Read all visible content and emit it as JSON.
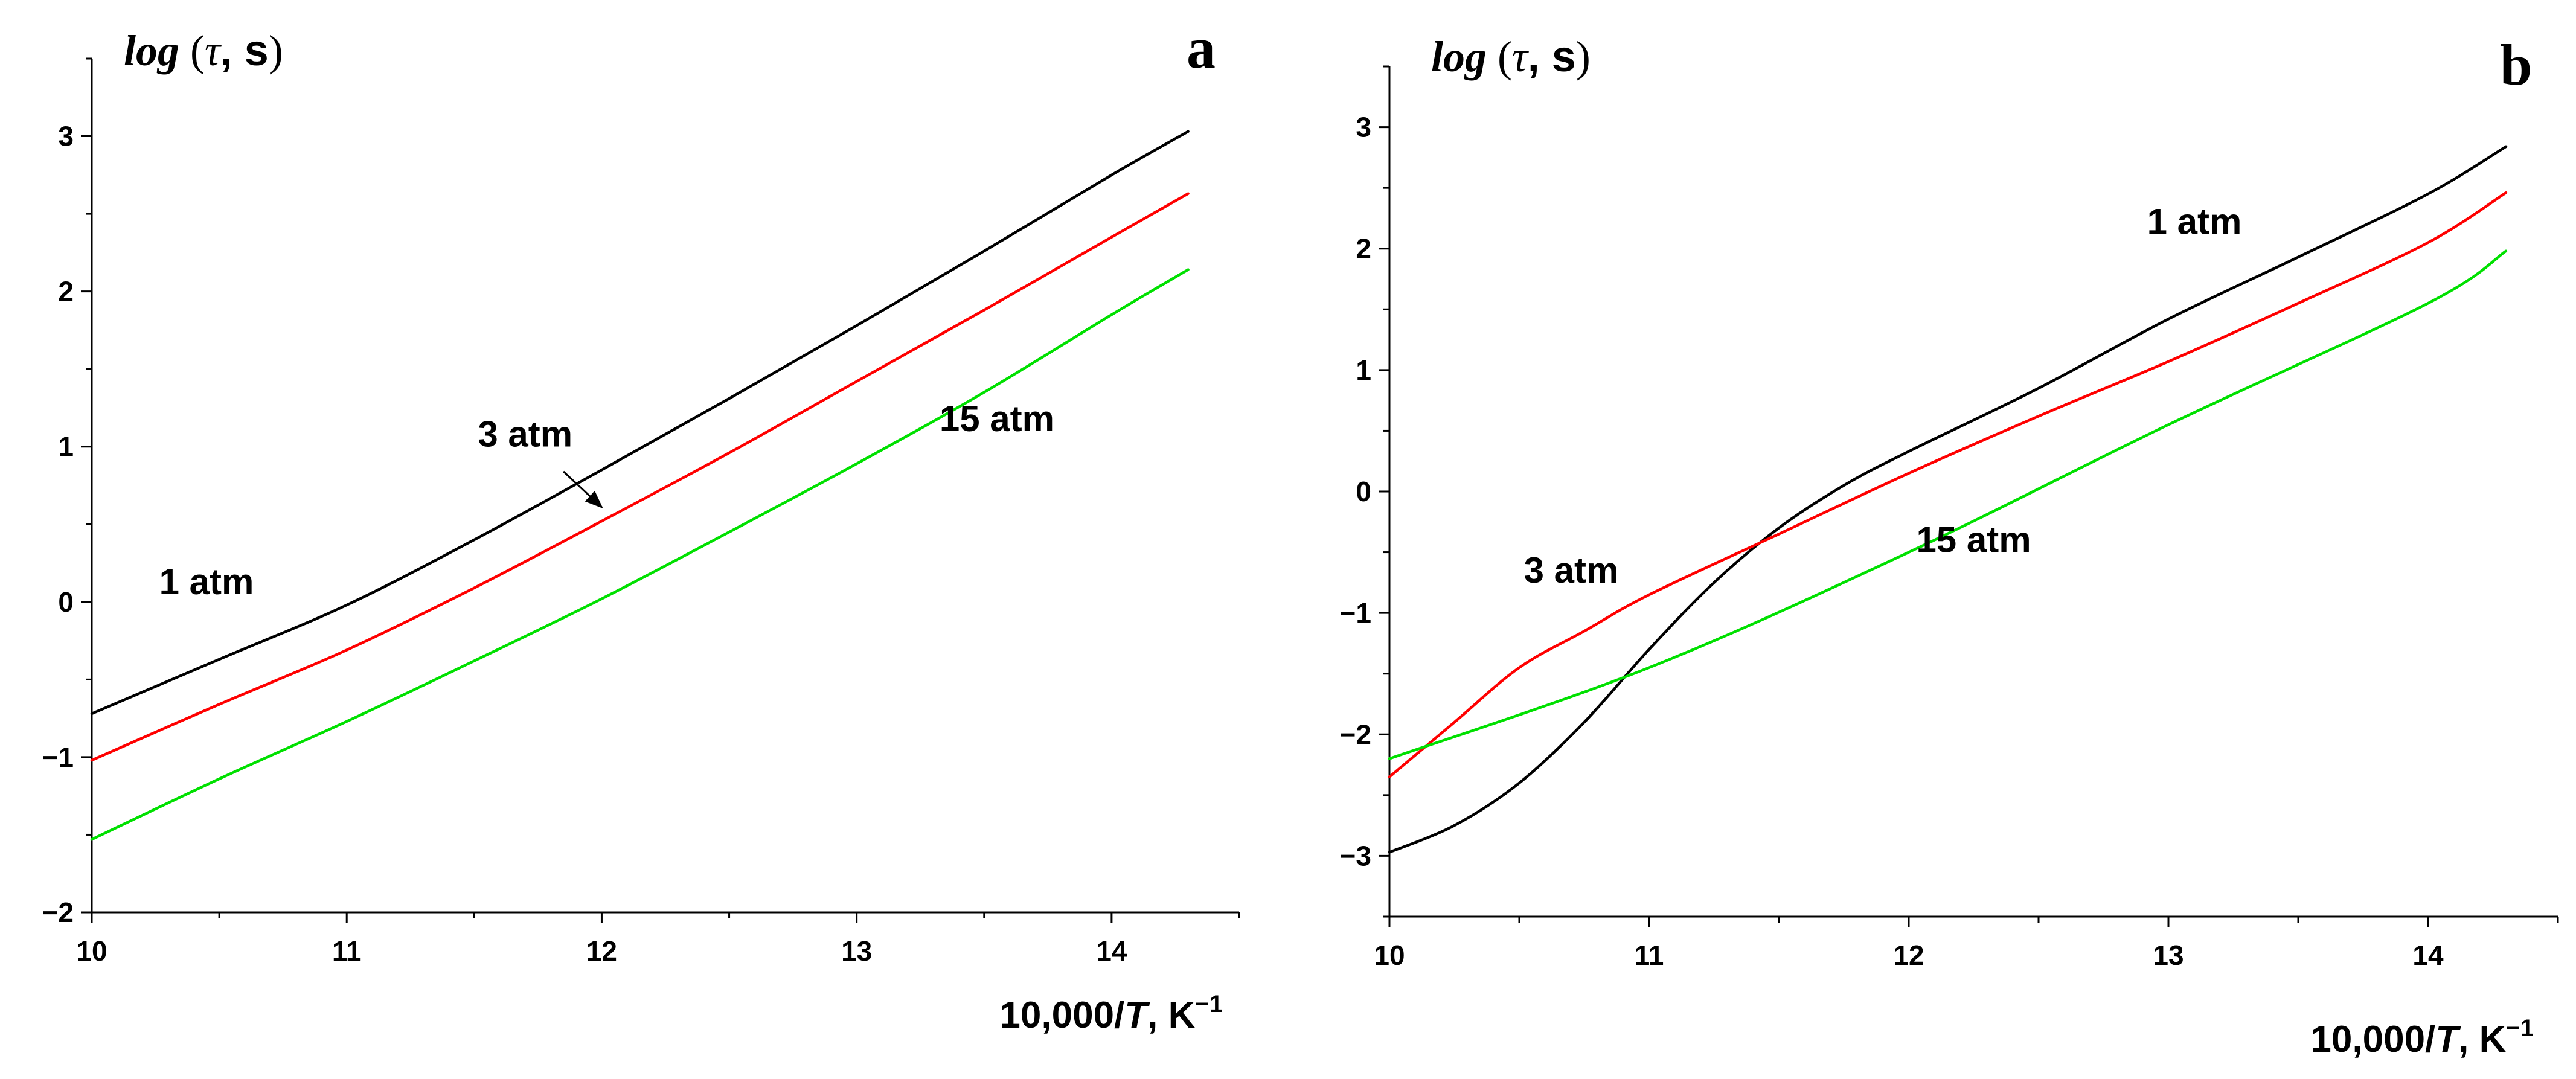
{
  "chart_data": [
    {
      "type": "line",
      "panel_label": "a",
      "ylabel": "log (τ, s)",
      "ylabel_parts": [
        "log",
        "τ",
        "s"
      ],
      "xlabel": "10,000/T, K−1",
      "xlabel_parts": [
        "10,000/",
        "T",
        ", K",
        "−1"
      ],
      "xlim": [
        10,
        14.5
      ],
      "ylim": [
        -2,
        3.5
      ],
      "xticks": [
        10,
        11,
        12,
        13,
        14
      ],
      "xtick_labels": [
        "10",
        "11",
        "12",
        "13",
        "14"
      ],
      "yticks": [
        -2,
        -1,
        0,
        1,
        2,
        3
      ],
      "ytick_labels": [
        "−2",
        "−1",
        "0",
        "1",
        "2",
        "3"
      ],
      "series": [
        {
          "name": "1 atm",
          "color": "#000000",
          "x": [
            10,
            10.5,
            11,
            11.5,
            12,
            12.5,
            13,
            13.5,
            14,
            14.3
          ],
          "y": [
            -0.72,
            -0.37,
            -0.02,
            0.4,
            0.85,
            1.31,
            1.78,
            2.26,
            2.75,
            3.03
          ]
        },
        {
          "name": "3 atm",
          "color": "#ff0000",
          "x": [
            10,
            10.5,
            11,
            11.5,
            12,
            12.5,
            13,
            13.5,
            14,
            14.3
          ],
          "y": [
            -1.02,
            -0.66,
            -0.31,
            0.09,
            0.52,
            0.96,
            1.42,
            1.88,
            2.35,
            2.63
          ]
        },
        {
          "name": "15 atm",
          "color": "#00e000",
          "x": [
            10,
            10.5,
            11,
            11.5,
            12,
            12.5,
            13,
            13.5,
            14,
            14.3
          ],
          "y": [
            -1.53,
            -1.14,
            -0.77,
            -0.38,
            0.02,
            0.45,
            0.89,
            1.35,
            1.85,
            2.14
          ]
        }
      ],
      "annotations": [
        {
          "text": "1 atm",
          "x": 10.45,
          "y": 0.05
        },
        {
          "text": "3 atm",
          "x": 11.7,
          "y": 1.0
        },
        {
          "text": "15 atm",
          "x": 13.55,
          "y": 1.1
        }
      ],
      "arrow": {
        "from": [
          11.85,
          0.84
        ],
        "to": [
          12.0,
          0.61
        ]
      }
    },
    {
      "type": "line",
      "panel_label": "b",
      "ylabel": "log (τ, s)",
      "ylabel_parts": [
        "log",
        "τ",
        "s"
      ],
      "xlabel": "10,000/T, K−1",
      "xlabel_parts": [
        "10,000/",
        "T",
        ", K",
        "−1"
      ],
      "xlim": [
        10,
        14.5
      ],
      "ylim": [
        -3.5,
        3.5
      ],
      "xticks": [
        10,
        11,
        12,
        13,
        14
      ],
      "xtick_labels": [
        "10",
        "11",
        "12",
        "13",
        "14"
      ],
      "yticks": [
        -3,
        -2,
        -1,
        0,
        1,
        2,
        3
      ],
      "ytick_labels": [
        "−3",
        "−2",
        "−1",
        "0",
        "1",
        "2",
        "3"
      ],
      "series": [
        {
          "name": "1 atm",
          "color": "#000000",
          "x": [
            10,
            10.25,
            10.5,
            10.75,
            11,
            11.25,
            11.5,
            11.75,
            12,
            12.5,
            13,
            13.5,
            14,
            14.3
          ],
          "y": [
            -2.97,
            -2.75,
            -2.4,
            -1.9,
            -1.3,
            -0.75,
            -0.3,
            0.05,
            0.33,
            0.85,
            1.42,
            1.93,
            2.45,
            2.84
          ]
        },
        {
          "name": "3 atm",
          "color": "#ff0000",
          "x": [
            10,
            10.25,
            10.5,
            10.75,
            11,
            11.5,
            12,
            12.5,
            13,
            13.5,
            14,
            14.3
          ],
          "y": [
            -2.35,
            -1.9,
            -1.45,
            -1.15,
            -0.85,
            -0.35,
            0.15,
            0.62,
            1.07,
            1.55,
            2.05,
            2.46
          ]
        },
        {
          "name": "15 atm",
          "color": "#00e000",
          "x": [
            10,
            11,
            12,
            13,
            14,
            14.3
          ],
          "y": [
            -2.2,
            -1.45,
            -0.5,
            0.55,
            1.55,
            1.98
          ]
        }
      ],
      "annotations": [
        {
          "text": "1 atm",
          "x": 13.1,
          "y": 2.12
        },
        {
          "text": "3 atm",
          "x": 10.7,
          "y": -0.75
        },
        {
          "text": "15 atm",
          "x": 12.25,
          "y": -0.5
        }
      ]
    }
  ]
}
